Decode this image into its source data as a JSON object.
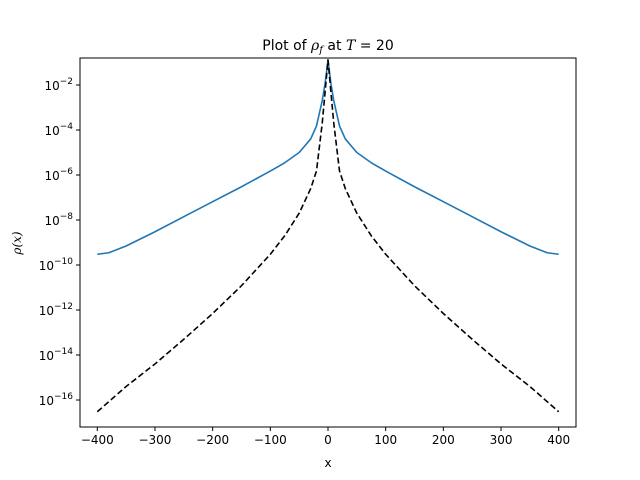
{
  "chart_data": {
    "type": "line",
    "title": {
      "prefix": "Plot of ",
      "symbol": "ρ",
      "subscript": "f",
      "mid": " at ",
      "var": "T",
      "suffix": " = 20"
    },
    "xlabel": "x",
    "ylabel": {
      "symbol": "ρ",
      "arg": "(x)"
    },
    "yscale": "log",
    "xlim": [
      -430,
      430
    ],
    "ylim_log10": [
      -17.2,
      -0.8
    ],
    "xticks": [
      -400,
      -300,
      -200,
      -100,
      0,
      100,
      200,
      300,
      400
    ],
    "xtick_labels": [
      "−400",
      "−300",
      "−200",
      "−100",
      "0",
      "100",
      "200",
      "300",
      "400"
    ],
    "yticks_exp": [
      -16,
      -14,
      -12,
      -10,
      -8,
      -6,
      -4,
      -2
    ],
    "yticks_exp_labels": [
      "−16",
      "−14",
      "−12",
      "−10",
      "−8",
      "−6",
      "−4",
      "−2"
    ],
    "ytick_base": "10",
    "grid": false,
    "legend": "none",
    "series": [
      {
        "style": "solid",
        "color": "#1f77b4",
        "x": [
          -400,
          -380,
          -350,
          -300,
          -250,
          -200,
          -150,
          -100,
          -75,
          -50,
          -30,
          -20,
          -10,
          -5,
          0,
          5,
          10,
          20,
          30,
          50,
          75,
          100,
          150,
          200,
          250,
          300,
          350,
          380,
          400
        ],
        "y": [
          3e-10,
          3.5e-10,
          7e-10,
          3e-09,
          1.4e-08,
          6.5e-08,
          3e-07,
          1.5e-06,
          3.5e-06,
          1e-05,
          4e-05,
          0.00015,
          0.002,
          0.012,
          0.13,
          0.012,
          0.002,
          0.00015,
          4e-05,
          1e-05,
          3.5e-06,
          1.5e-06,
          3e-07,
          6.5e-08,
          1.4e-08,
          3e-09,
          7e-10,
          3.5e-10,
          3e-10
        ]
      },
      {
        "style": "dashed",
        "color": "#000000",
        "x": [
          -400,
          -350,
          -300,
          -250,
          -200,
          -150,
          -100,
          -75,
          -50,
          -30,
          -20,
          -10,
          -5,
          0,
          5,
          10,
          20,
          30,
          50,
          75,
          100,
          150,
          200,
          250,
          300,
          350,
          400
        ],
        "y": [
          3e-17,
          4e-16,
          4e-15,
          5e-14,
          7e-13,
          1.2e-11,
          3e-10,
          2e-09,
          2e-08,
          2.5e-07,
          1.5e-06,
          0.0002,
          0.005,
          0.13,
          0.005,
          0.0002,
          1.5e-06,
          2.5e-07,
          2e-08,
          2e-09,
          3e-10,
          1.2e-11,
          7e-13,
          5e-14,
          4e-15,
          4e-16,
          3e-17
        ]
      }
    ]
  }
}
